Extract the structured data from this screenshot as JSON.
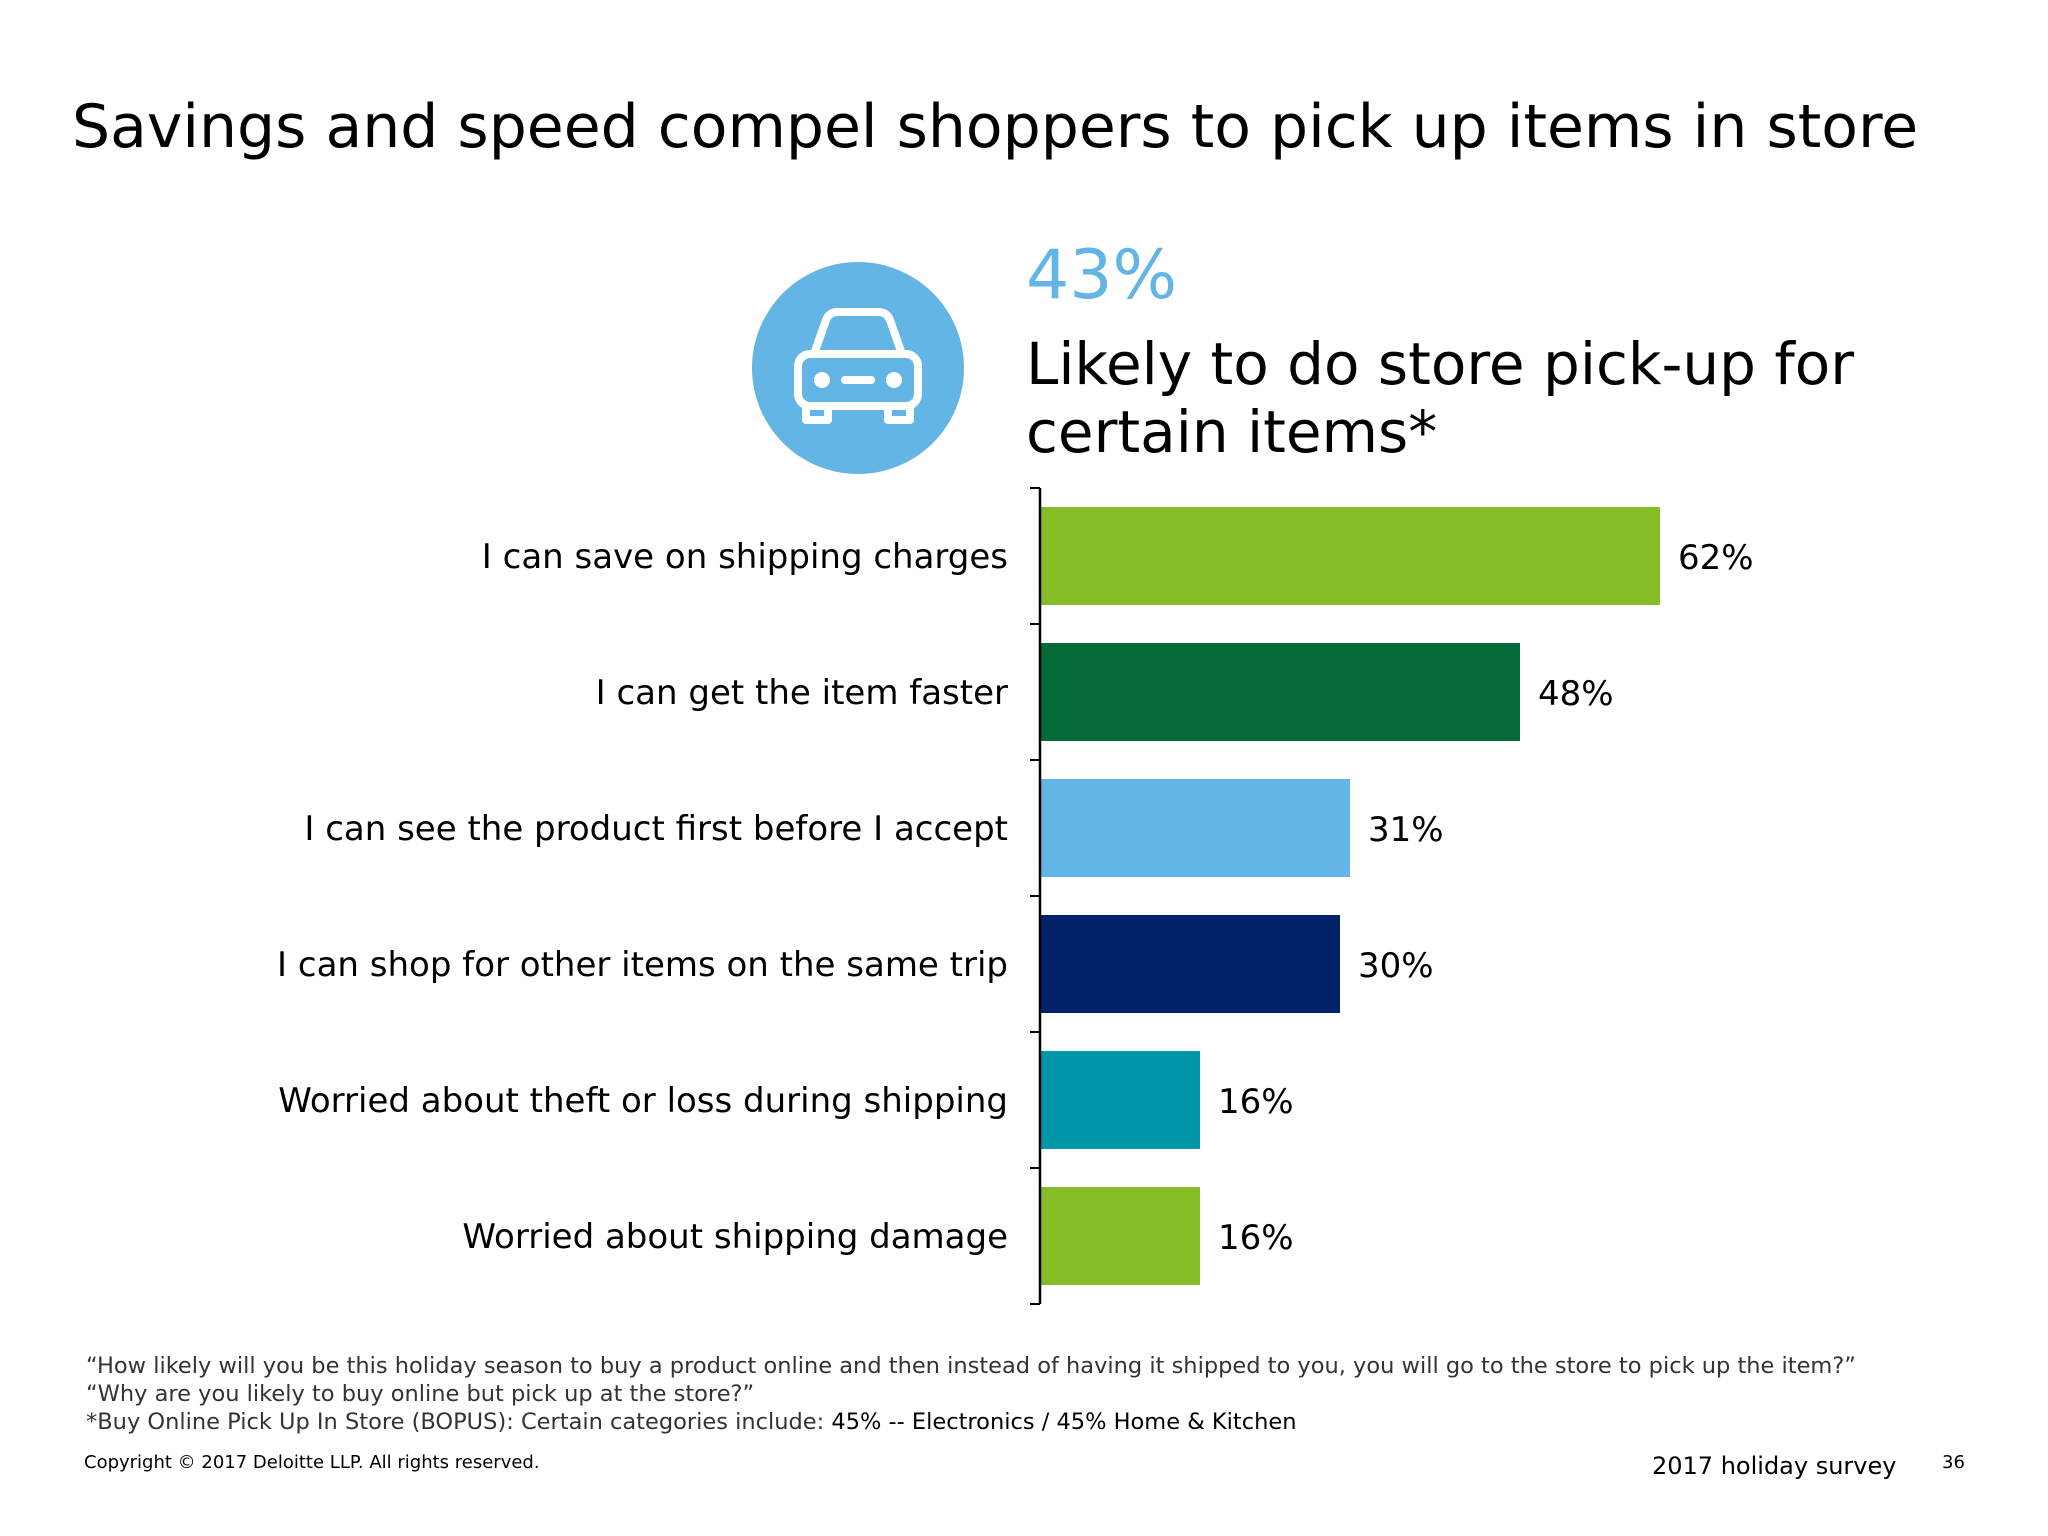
{
  "slide": {
    "title": "Savings and speed compel shoppers to pick up items in store",
    "highlight": {
      "icon": "car-icon",
      "value": "43%",
      "caption": "Likely to do store pick-up for certain items*"
    },
    "colors": {
      "accent_blue": "#62b5e5",
      "icon_circle": "#62b5e5"
    }
  },
  "chart_data": {
    "type": "bar",
    "orientation": "horizontal",
    "categories": [
      "I can save on shipping charges",
      "I can get the item faster",
      "I can see the product first before I accept",
      "I can shop for other items on the same trip",
      "Worried about theft or loss during shipping",
      "Worried about shipping damage"
    ],
    "values": [
      62,
      48,
      31,
      30,
      16,
      16
    ],
    "value_labels": [
      "62%",
      "48%",
      "31%",
      "30%",
      "16%",
      "16%"
    ],
    "colors": [
      "#86bc25",
      "#046a38",
      "#62b5e5",
      "#012169",
      "#0097a9",
      "#86bc25"
    ],
    "xlim": [
      0,
      100
    ],
    "title": "",
    "xlabel": "",
    "ylabel": "",
    "grid": false,
    "legend": "none"
  },
  "footer": {
    "note_1": "“How likely will you be this holiday season to buy a product online and then instead of having it shipped to you, you will go to the store to pick up the item?”",
    "note_2": "“Why are you likely to buy online but pick up at the store?”",
    "note_3_prefix": "*Buy Online Pick Up In Store (BOPUS): Certain categories include: ",
    "note_3_values": "45% -- Electronics / 45% Home & Kitchen",
    "copyright": "Copyright © 2017 Deloitte LLP. All rights reserved.",
    "survey": "2017 holiday survey",
    "page_number": "36"
  }
}
